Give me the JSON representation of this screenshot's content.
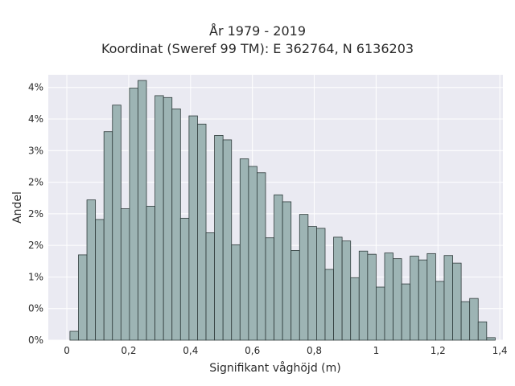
{
  "chart_data": {
    "type": "bar",
    "title": "År 1979 - 2019",
    "subtitle": "Koordinat (Sweref 99 TM): E 362764, N 6136203",
    "xlabel": "Signifikant våghöjd (m)",
    "ylabel": "Andel",
    "xlim": [
      -0.06,
      1.41
    ],
    "ylim": [
      0,
      4.2
    ],
    "x_ticks": [
      {
        "value": 0,
        "label": "0"
      },
      {
        "value": 0.2,
        "label": "0,2"
      },
      {
        "value": 0.4,
        "label": "0,4"
      },
      {
        "value": 0.6,
        "label": "0,6"
      },
      {
        "value": 0.8,
        "label": "0,8"
      },
      {
        "value": 1.0,
        "label": "1"
      },
      {
        "value": 1.2,
        "label": "1,2"
      },
      {
        "value": 1.4,
        "label": "1,4"
      }
    ],
    "y_ticks": [
      {
        "value": 0,
        "label": "0%"
      },
      {
        "value": 0.5,
        "label": "0%"
      },
      {
        "value": 1.0,
        "label": "1%"
      },
      {
        "value": 1.5,
        "label": "2%"
      },
      {
        "value": 2.0,
        "label": "2%"
      },
      {
        "value": 2.5,
        "label": "2%"
      },
      {
        "value": 3.0,
        "label": "3%"
      },
      {
        "value": 3.5,
        "label": "4%"
      },
      {
        "value": 4.0,
        "label": "4%"
      }
    ],
    "bin_start": 0.01,
    "bin_width": 0.0275,
    "values": [
      0.14,
      1.35,
      2.22,
      1.91,
      3.3,
      3.72,
      2.08,
      3.99,
      4.11,
      2.12,
      3.87,
      3.84,
      3.66,
      1.93,
      3.55,
      3.42,
      1.7,
      3.24,
      3.17,
      1.51,
      2.87,
      2.75,
      2.65,
      1.62,
      2.3,
      2.19,
      1.42,
      1.99,
      1.8,
      1.77,
      1.12,
      1.63,
      1.57,
      0.99,
      1.41,
      1.36,
      0.84,
      1.38,
      1.29,
      0.89,
      1.33,
      1.27,
      1.37,
      0.93,
      1.34,
      1.22,
      0.61,
      0.66,
      0.29,
      0.04
    ],
    "grid": true,
    "colors": {
      "bar_fill": "#9db4b4",
      "bar_edge": "#2f3b3b",
      "plot_bg": "#eaeaf2",
      "grid": "#ffffff"
    }
  }
}
